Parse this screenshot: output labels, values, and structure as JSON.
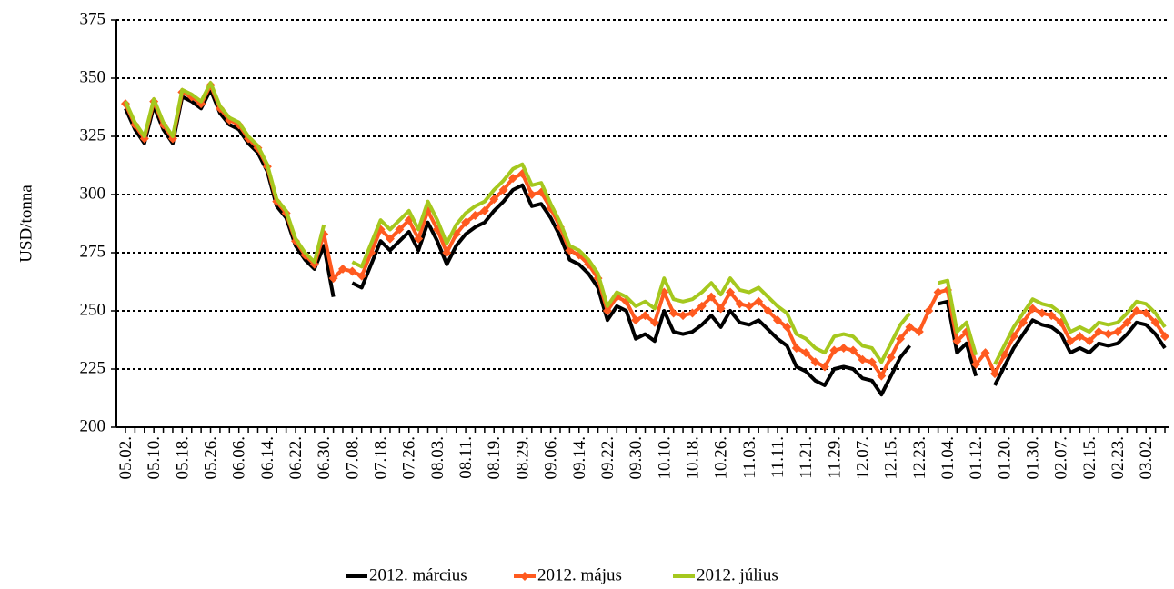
{
  "chart_data": {
    "type": "line",
    "ylabel": "USD/tonna",
    "categories": [
      "05.02.",
      null,
      null,
      "05.10.",
      null,
      null,
      "05.18.",
      null,
      null,
      "05.26.",
      null,
      null,
      "06.06.",
      null,
      null,
      "06.14.",
      null,
      null,
      "06.22.",
      null,
      null,
      "06.30.",
      null,
      null,
      "07.08.",
      null,
      null,
      "07.18.",
      null,
      null,
      "07.26.",
      null,
      null,
      "08.03.",
      null,
      null,
      "08.11.",
      null,
      null,
      "08.19.",
      null,
      null,
      "08.29.",
      null,
      null,
      "09.06.",
      null,
      null,
      "09.14.",
      null,
      null,
      "09.22.",
      null,
      null,
      "09.30.",
      null,
      null,
      "10.10.",
      null,
      null,
      "10.18.",
      null,
      null,
      "10.26.",
      null,
      null,
      "11.03.",
      null,
      null,
      "11.11.",
      null,
      null,
      "11.21.",
      null,
      null,
      "11.29.",
      null,
      null,
      "12.07.",
      null,
      null,
      "12.15.",
      null,
      null,
      "12.23.",
      null,
      null,
      "01.04.",
      null,
      null,
      "01.12.",
      null,
      null,
      "01.20.",
      null,
      null,
      "01.30.",
      null,
      null,
      "02.07.",
      null,
      null,
      "02.15.",
      null,
      null,
      "02.23.",
      null,
      null,
      "03.02.",
      null,
      null
    ],
    "series": [
      {
        "name": "2012. március",
        "color": "#000000",
        "values": [
          337,
          328,
          322,
          338,
          328,
          322,
          342,
          340,
          337,
          345,
          335,
          330,
          328,
          322,
          318,
          310,
          295,
          290,
          278,
          272,
          268,
          278,
          256,
          null,
          262,
          260,
          270,
          280,
          276,
          280,
          284,
          276,
          288,
          280,
          270,
          278,
          283,
          286,
          288,
          293,
          297,
          302,
          304,
          295,
          296,
          290,
          282,
          272,
          270,
          266,
          260,
          246,
          252,
          250,
          238,
          240,
          237,
          250,
          241,
          240,
          241,
          244,
          248,
          243,
          250,
          245,
          244,
          246,
          242,
          238,
          235,
          226,
          224,
          220,
          218,
          225,
          226,
          225,
          221,
          220,
          214,
          222,
          230,
          235,
          null,
          null,
          253,
          254,
          232,
          236,
          222,
          null,
          218,
          226,
          234,
          240,
          246,
          244,
          243,
          240,
          232,
          234,
          232,
          236,
          235,
          236,
          240,
          245,
          244,
          240,
          234
        ]
      },
      {
        "name": "2012. május",
        "color": "#ff5a1f",
        "marker": "diamond",
        "values": [
          339,
          330,
          324,
          340,
          330,
          324,
          344,
          342,
          339,
          347,
          337,
          332,
          330,
          324,
          320,
          312,
          297,
          292,
          280,
          274,
          270,
          283,
          264,
          268,
          267,
          265,
          275,
          285,
          281,
          285,
          289,
          281,
          293,
          285,
          275,
          283,
          288,
          291,
          293,
          298,
          302,
          307,
          309,
          300,
          301,
          294,
          286,
          276,
          274,
          270,
          264,
          250,
          256,
          254,
          246,
          248,
          245,
          258,
          249,
          248,
          249,
          252,
          256,
          251,
          258,
          253,
          252,
          254,
          250,
          246,
          243,
          234,
          232,
          228,
          226,
          233,
          234,
          233,
          229,
          228,
          222,
          230,
          238,
          243,
          241,
          250,
          258,
          259,
          237,
          241,
          227,
          232,
          223,
          231,
          239,
          245,
          251,
          249,
          248,
          245,
          237,
          239,
          237,
          241,
          240,
          241,
          245,
          250,
          249,
          245,
          239
        ]
      },
      {
        "name": "2012. július",
        "color": "#a5c81e",
        "values": [
          340,
          331,
          325,
          341,
          331,
          325,
          345,
          343,
          340,
          348,
          338,
          333,
          331,
          325,
          321,
          313,
          298,
          293,
          281,
          275,
          271,
          287,
          null,
          null,
          271,
          269,
          279,
          289,
          285,
          289,
          293,
          285,
          297,
          289,
          279,
          287,
          292,
          295,
          297,
          302,
          306,
          311,
          313,
          304,
          305,
          296,
          288,
          278,
          276,
          272,
          266,
          252,
          258,
          256,
          252,
          254,
          251,
          264,
          255,
          254,
          255,
          258,
          262,
          257,
          264,
          259,
          258,
          260,
          256,
          252,
          249,
          240,
          238,
          234,
          232,
          239,
          240,
          239,
          235,
          234,
          228,
          236,
          244,
          249,
          null,
          null,
          262,
          263,
          241,
          245,
          231,
          null,
          227,
          235,
          243,
          249,
          255,
          253,
          252,
          249,
          241,
          243,
          241,
          245,
          244,
          245,
          249,
          254,
          253,
          249,
          243
        ]
      }
    ],
    "ylim": [
      200,
      375
    ],
    "yticks": [
      200,
      225,
      250,
      275,
      300,
      325,
      350,
      375
    ],
    "grid": true,
    "legend": "bottom"
  }
}
